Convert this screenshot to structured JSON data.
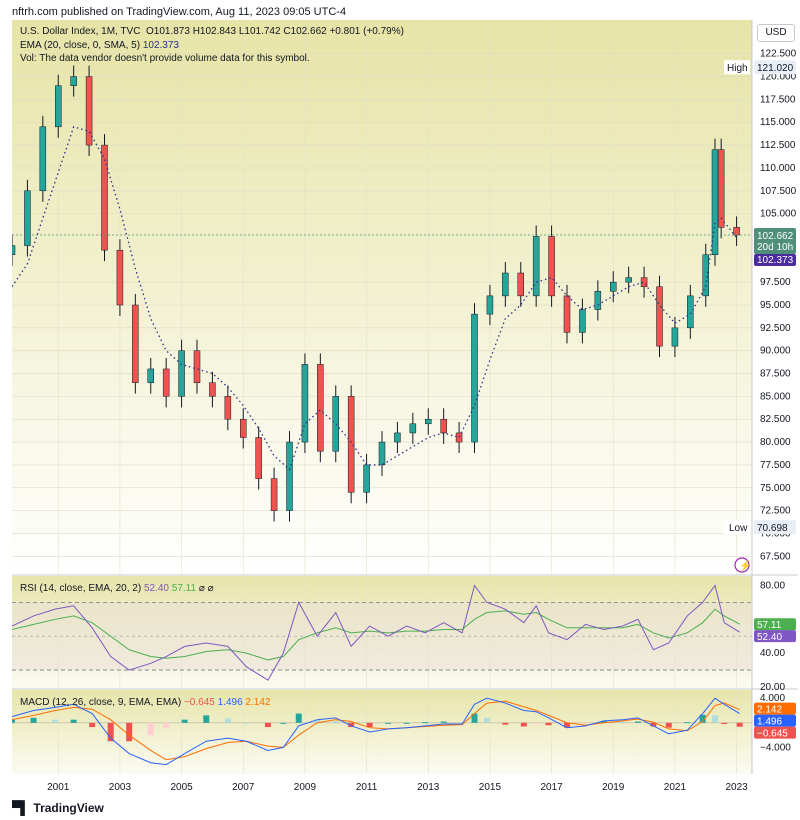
{
  "header": "nftrh.com published on TradingView.com, Aug 11, 2023 09:05 UTC-4",
  "currency_button": "USD",
  "footer_brand": "TradingView",
  "legend": {
    "symbol": "U.S. Dollar Index, 1M, TVC",
    "ohlc": "O101.873  H102.843  L101.742  C102.662  +0.801 (+0.79%)",
    "ema_label": "EMA (20, close, 0, SMA, 5)",
    "ema_value": "102.373",
    "vol": "Vol: The data vendor doesn't provide volume data for this symbol.",
    "rsi_label": "RSI (14, close, EMA, 20, 2)",
    "rsi_value": "52.40",
    "rsi_ma_value": "57.11",
    "rsi_extra": "⌀ ⌀",
    "macd_label": "MACD (12, 26, close, 9, EMA, EMA)",
    "macd_hist": "−0.645",
    "macd_line": "1.496",
    "macd_signal": "2.142"
  },
  "price_axis": {
    "ticks": [
      "122.500",
      "120.000",
      "117.500",
      "115.000",
      "112.500",
      "110.000",
      "107.500",
      "105.000",
      "97.500",
      "95.000",
      "92.500",
      "90.000",
      "87.500",
      "85.000",
      "82.500",
      "80.000",
      "77.500",
      "75.000",
      "72.500",
      "70.000",
      "67.500"
    ],
    "high_label": "High",
    "high_value": "121.020",
    "low_label": "Low",
    "low_value": "70.698",
    "last_price": "102.662",
    "countdown": "20d 10h",
    "ema_tag": "102.373"
  },
  "rsi_axis": {
    "ticks": [
      "80.00",
      "40.00",
      "20.00"
    ],
    "ma_tag": "57.11",
    "rsi_tag": "52.40"
  },
  "macd_axis": {
    "ticks": [
      "4.000",
      "−4.000"
    ],
    "signal_tag": "2.142",
    "macd_tag": "1.496",
    "hist_tag": "−0.645"
  },
  "time_axis": [
    "2001",
    "2003",
    "2005",
    "2007",
    "2009",
    "2011",
    "2013",
    "2015",
    "2017",
    "2019",
    "2021",
    "2023"
  ],
  "colors": {
    "up": "#26a69a",
    "down": "#ef5350",
    "wick": "#131722",
    "ema": "#2a2e8c",
    "rsi": "#7e57c2",
    "rsi_ma": "#4caf50",
    "macd": "#2962ff",
    "signal": "#ff6d00",
    "bg_top": "#e6e4a6",
    "bg_bottom": "#ffffff",
    "price_tag": "#4f8f7a",
    "ema_tag": "#4b2ba0"
  },
  "chart_data": [
    {
      "type": "candlestick",
      "title": "U.S. Dollar Index, 1M, TVC",
      "interval": "1M",
      "ylim": [
        66,
        124
      ],
      "x": [
        2000.0,
        2000.5,
        2001.0,
        2001.5,
        2002.0,
        2002.5,
        2003.0,
        2003.5,
        2004.0,
        2004.5,
        2005.0,
        2005.5,
        2006.0,
        2006.5,
        2007.0,
        2007.5,
        2008.0,
        2008.5,
        2009.0,
        2009.5,
        2010.0,
        2010.5,
        2011.0,
        2011.5,
        2012.0,
        2012.5,
        2013.0,
        2013.5,
        2014.0,
        2014.5,
        2015.0,
        2015.5,
        2016.0,
        2016.5,
        2017.0,
        2017.5,
        2018.0,
        2018.5,
        2019.0,
        2019.5,
        2020.0,
        2020.5,
        2021.0,
        2021.5,
        2022.0,
        2022.5,
        2022.8,
        2023.0,
        2023.5
      ],
      "close": [
        101.5,
        107.5,
        114.5,
        119.0,
        120.0,
        112.5,
        101.0,
        95.0,
        86.5,
        88.0,
        85.0,
        90.0,
        86.5,
        85.0,
        82.5,
        80.5,
        76.0,
        72.5,
        80.0,
        88.5,
        79.0,
        85.0,
        74.5,
        77.5,
        80.0,
        81.0,
        82.0,
        82.5,
        81.0,
        80.0,
        94.0,
        96.0,
        98.5,
        96.0,
        102.5,
        96.0,
        92.0,
        94.5,
        96.5,
        97.5,
        98.0,
        97.0,
        90.5,
        92.5,
        96.0,
        100.5,
        112.0,
        103.5,
        102.66
      ],
      "ema": [
        97.0,
        99.5,
        104.5,
        109.5,
        114.5,
        114.0,
        111.0,
        105.5,
        99.0,
        93.5,
        90.0,
        88.5,
        88.0,
        87.5,
        86.0,
        84.0,
        81.5,
        78.5,
        77.0,
        82.0,
        83.5,
        82.0,
        80.0,
        77.5,
        77.5,
        78.5,
        79.5,
        80.5,
        81.0,
        80.5,
        84.0,
        89.0,
        93.5,
        95.0,
        97.5,
        98.0,
        96.0,
        94.5,
        95.0,
        96.0,
        97.0,
        97.5,
        95.0,
        93.0,
        94.0,
        97.0,
        104.0,
        104.5,
        102.37
      ]
    },
    {
      "type": "line",
      "title": "RSI (14, close, EMA, 20, 2)",
      "ylim": [
        20,
        85
      ],
      "levels": [
        70,
        30
      ],
      "x": [
        2000.0,
        2000.7,
        2001.4,
        2002.0,
        2002.6,
        2003.2,
        2003.8,
        2004.5,
        2005.0,
        2005.6,
        2006.3,
        2007.0,
        2007.6,
        2008.3,
        2008.8,
        2009.3,
        2009.9,
        2010.5,
        2011.0,
        2011.6,
        2012.2,
        2012.8,
        2013.4,
        2014.0,
        2014.6,
        2015.0,
        2015.4,
        2016.0,
        2016.6,
        2017.0,
        2017.4,
        2018.0,
        2018.6,
        2019.2,
        2019.8,
        2020.3,
        2020.8,
        2021.3,
        2021.9,
        2022.4,
        2022.8,
        2023.1,
        2023.6
      ],
      "rsi": [
        56,
        62,
        66,
        68,
        55,
        38,
        30,
        34,
        38,
        44,
        46,
        44,
        32,
        24,
        40,
        70,
        50,
        64,
        44,
        56,
        50,
        56,
        52,
        58,
        52,
        80,
        70,
        66,
        58,
        68,
        52,
        48,
        57,
        54,
        56,
        60,
        42,
        46,
        62,
        70,
        80,
        58,
        52.4
      ],
      "rsi_ma": [
        54,
        57,
        60,
        62,
        58,
        50,
        42,
        38,
        37,
        38,
        41,
        42,
        40,
        36,
        38,
        48,
        52,
        55,
        52,
        53,
        52,
        53,
        53,
        54,
        54,
        60,
        64,
        65,
        63,
        64,
        60,
        55,
        55,
        55,
        55,
        57,
        52,
        49,
        52,
        58,
        66,
        62,
        57.11
      ]
    },
    {
      "type": "line",
      "title": "MACD (12, 26, close, 9, EMA, EMA)",
      "ylim": [
        -8,
        5
      ],
      "x": [
        2000.0,
        2000.7,
        2001.4,
        2002.0,
        2002.6,
        2003.2,
        2003.8,
        2004.5,
        2005.0,
        2005.6,
        2006.3,
        2007.0,
        2007.6,
        2008.3,
        2008.8,
        2009.3,
        2009.9,
        2010.5,
        2011.0,
        2011.6,
        2012.2,
        2012.8,
        2013.4,
        2014.0,
        2014.6,
        2015.0,
        2015.4,
        2016.0,
        2016.6,
        2017.0,
        2017.4,
        2018.0,
        2018.6,
        2019.2,
        2019.8,
        2020.3,
        2020.8,
        2021.3,
        2021.9,
        2022.4,
        2022.8,
        2023.1,
        2023.6
      ],
      "macd": [
        1.0,
        2.0,
        2.5,
        3.0,
        1.5,
        -2.5,
        -5.0,
        -6.5,
        -6.8,
        -5.0,
        -3.0,
        -2.5,
        -3.0,
        -4.5,
        -4.0,
        -0.5,
        0.5,
        0.8,
        -0.5,
        -1.5,
        -1.0,
        -0.8,
        -0.5,
        -0.2,
        -0.2,
        3.0,
        4.0,
        3.2,
        2.0,
        1.8,
        0.8,
        -0.8,
        -0.5,
        0.3,
        0.5,
        0.8,
        -0.5,
        -1.8,
        -1.2,
        1.5,
        4.0,
        3.0,
        1.496
      ],
      "signal": [
        0.5,
        1.2,
        2.0,
        2.5,
        2.2,
        0.5,
        -2.0,
        -4.5,
        -6.0,
        -5.5,
        -4.2,
        -3.2,
        -3.0,
        -3.8,
        -4.0,
        -2.0,
        0.0,
        0.5,
        0.2,
        -0.8,
        -1.0,
        -0.8,
        -0.6,
        -0.4,
        -0.3,
        1.5,
        3.2,
        3.5,
        2.6,
        2.0,
        1.2,
        0.0,
        -0.4,
        0.0,
        0.3,
        0.6,
        0.1,
        -1.0,
        -1.3,
        0.2,
        2.8,
        3.2,
        2.142
      ]
    }
  ]
}
